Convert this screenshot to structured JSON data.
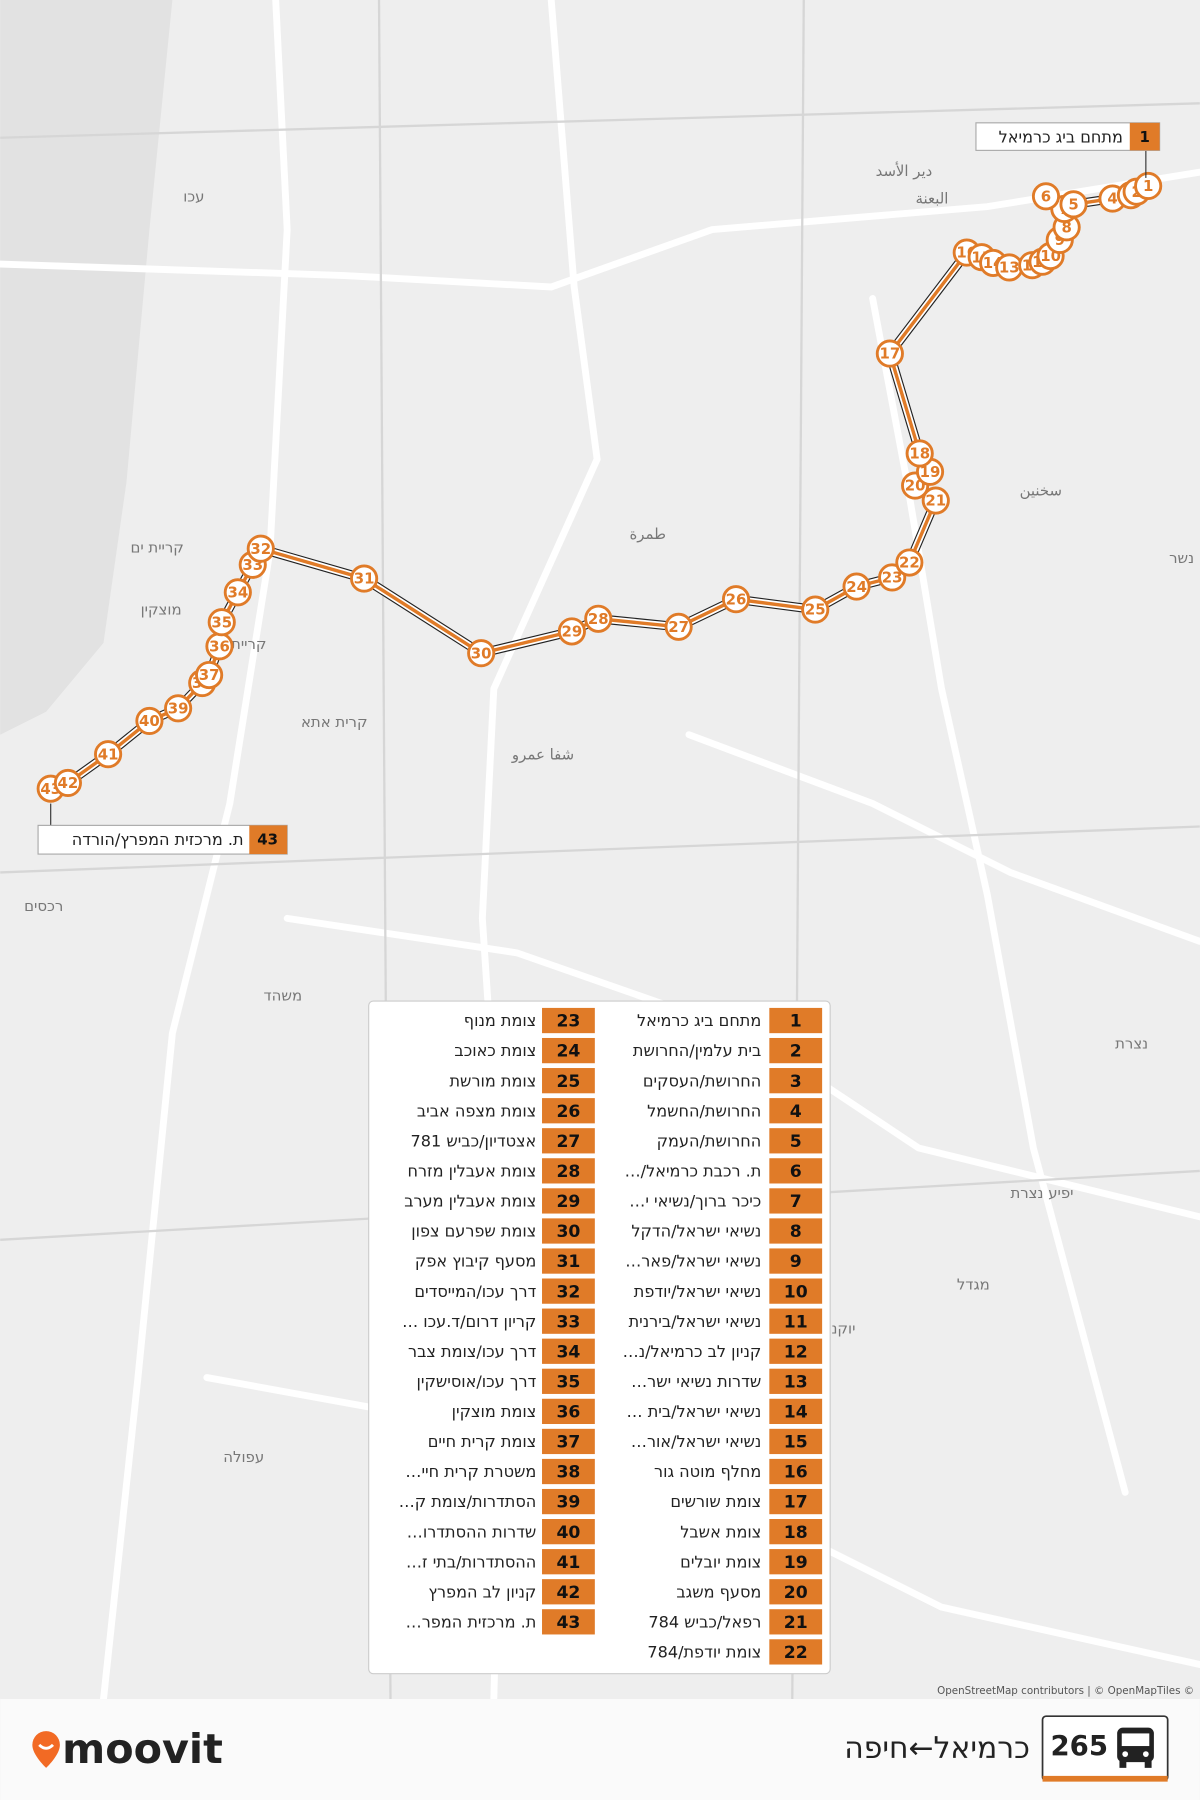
{
  "map": {
    "places": [
      "עכו",
      "קריית ים",
      "מוצקין",
      "קריית",
      "קרית אתא",
      "شفا عمرو",
      "طمرة",
      "دير الأسد",
      "البعنة",
      "سخنين",
      "נשר",
      "רכסים",
      "משהד",
      "נצרת",
      "יפיע נצרת",
      "מגדל",
      "יוקנעם עילית",
      "עפולה"
    ],
    "attribution": "OpenStreetMap contributors | © OpenMapTiles ©"
  },
  "callouts": {
    "start": {
      "number": "1",
      "name": "מתחם ביג כרמיאל"
    },
    "end": {
      "number": "43",
      "name": "ת. מרכזית המפרץ/הורדה"
    }
  },
  "stops": [
    {
      "number": 1,
      "name": "מתחם ביג כרמיאל"
    },
    {
      "number": 2,
      "name": "בית עלמין/החרושת"
    },
    {
      "number": 3,
      "name": "החרושת/העסקים"
    },
    {
      "number": 4,
      "name": "החרושת/החשמל"
    },
    {
      "number": 5,
      "name": "החרושת/העמק"
    },
    {
      "number": 6,
      "name": "ת. רכבת כרמיאל/…"
    },
    {
      "number": 7,
      "name": "כיכר ברוך/נשיאי י…"
    },
    {
      "number": 8,
      "name": "נשיאי ישראל/הדקל"
    },
    {
      "number": 9,
      "name": "נשיאי ישראל/פאר…"
    },
    {
      "number": 10,
      "name": "נשיאי ישראל/יודפת"
    },
    {
      "number": 11,
      "name": "נשיאי ישראל/בירנית"
    },
    {
      "number": 12,
      "name": "קניון לב כרמיאל/נ…"
    },
    {
      "number": 13,
      "name": "שדרות נשיאי ישר…"
    },
    {
      "number": 14,
      "name": "נשיאי ישראל/בית …"
    },
    {
      "number": 15,
      "name": "נשיאי ישראל/אור…"
    },
    {
      "number": 16,
      "name": "מחלף מוטה גור"
    },
    {
      "number": 17,
      "name": "צומת שורשים"
    },
    {
      "number": 18,
      "name": "צומת אשבל"
    },
    {
      "number": 19,
      "name": "צומת יובלים"
    },
    {
      "number": 20,
      "name": "מסעף משגב"
    },
    {
      "number": 21,
      "name": "רפאל/כביש 784"
    },
    {
      "number": 22,
      "name": "צומת יודפת/784"
    },
    {
      "number": 23,
      "name": "צומת מנוף"
    },
    {
      "number": 24,
      "name": "צומת כאוכב"
    },
    {
      "number": 25,
      "name": "צומת מורשת"
    },
    {
      "number": 26,
      "name": "צומת מצפה אביב"
    },
    {
      "number": 27,
      "name": "אצטדיון/כביש 781"
    },
    {
      "number": 28,
      "name": "צומת אעבלין מזרח"
    },
    {
      "number": 29,
      "name": "צומת אעבלין מערב"
    },
    {
      "number": 30,
      "name": "צומת שפרעם צפון"
    },
    {
      "number": 31,
      "name": "מסעף קיבוץ אפק"
    },
    {
      "number": 32,
      "name": "דרך עכו/המייסדים"
    },
    {
      "number": 33,
      "name": "קריון דרום/ד.עכו …"
    },
    {
      "number": 34,
      "name": "דרך עכו/צומת צבר"
    },
    {
      "number": 35,
      "name": "דרך עכו/אוסישקין"
    },
    {
      "number": 36,
      "name": "צומת מוצקין"
    },
    {
      "number": 37,
      "name": "צומת קרית חיים"
    },
    {
      "number": 38,
      "name": "משטרת קרית חיי…"
    },
    {
      "number": 39,
      "name": "הסתדרות/צומת ק…"
    },
    {
      "number": 40,
      "name": "שדרות ההסתדרו…"
    },
    {
      "number": 41,
      "name": "ההסתדרות/בתי ז…"
    },
    {
      "number": 42,
      "name": "קניון לב המפרץ"
    },
    {
      "number": 43,
      "name": "ת. מרכזית המפר…"
    }
  ],
  "footer": {
    "route_number": "265",
    "route_name": "כרמיאל←חיפה",
    "brand": "moovit"
  }
}
